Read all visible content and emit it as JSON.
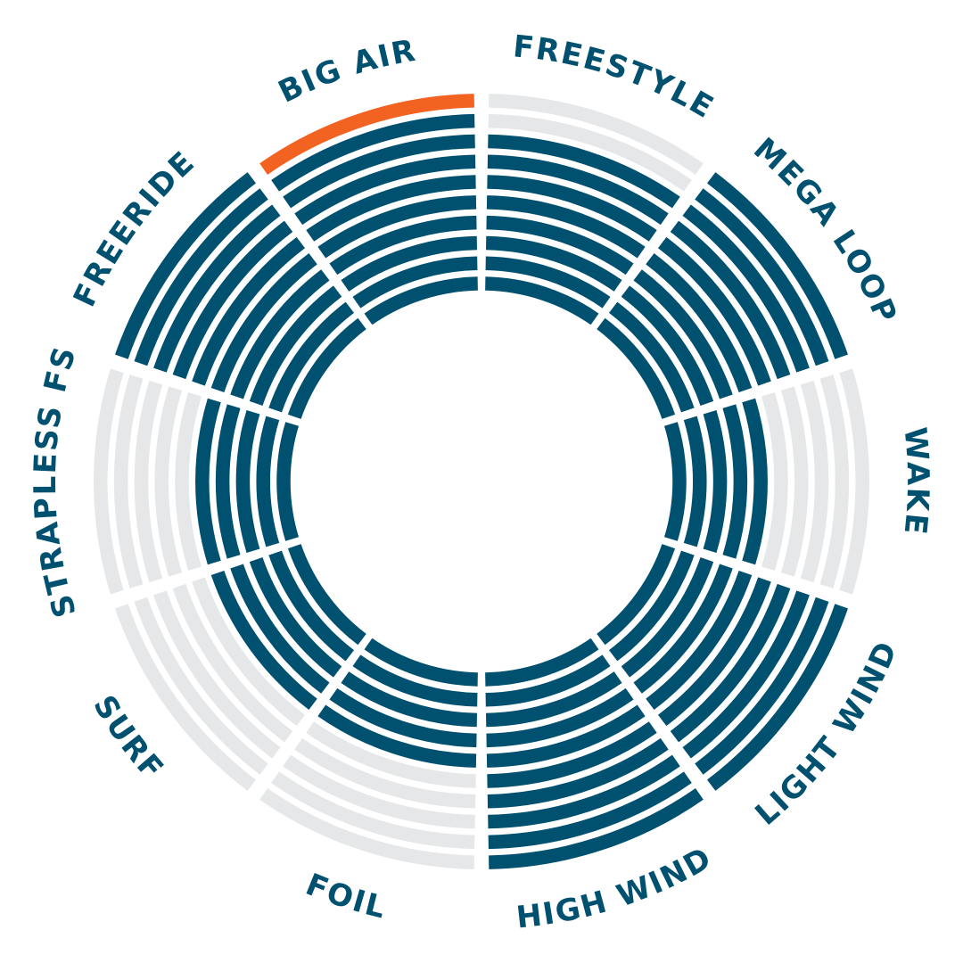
{
  "chart_data": {
    "type": "radial-bar",
    "max": 10,
    "categories": [
      "FREESTYLE",
      "MEGA LOOP",
      "WAKE",
      "LIGHT WIND",
      "HIGH WIND",
      "FOIL",
      "SURF",
      "STRAPLESS FS",
      "FREERIDE",
      "BIG AIR"
    ],
    "values": [
      8,
      10,
      5,
      10,
      10,
      5,
      5,
      5,
      10,
      10
    ],
    "highlight": "BIG AIR",
    "colors": {
      "filled": "#005070",
      "empty": "#e6e7e8",
      "highlight": "#f26322",
      "label": "#005070"
    }
  }
}
